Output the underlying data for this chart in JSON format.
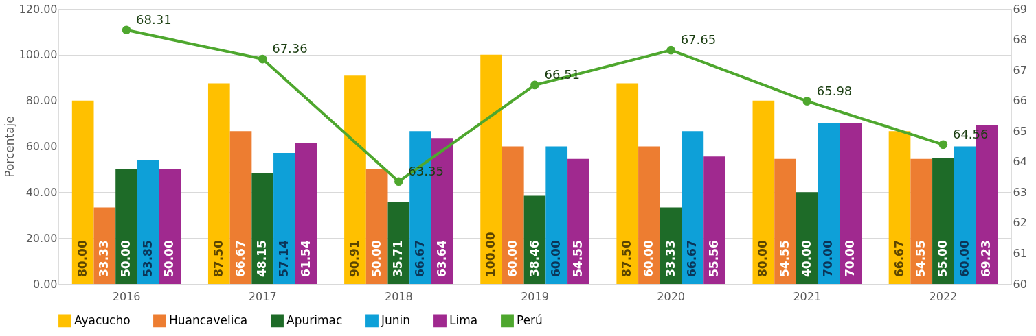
{
  "chart_data": {
    "type": "bar",
    "ylabel": "Porcentaje",
    "categories": [
      "2016",
      "2017",
      "2018",
      "2019",
      "2020",
      "2021",
      "2022"
    ],
    "series": [
      {
        "name": "Ayacucho",
        "color": "#ffc000",
        "values": [
          80.0,
          87.5,
          90.91,
          100.0,
          87.5,
          80.0,
          66.67
        ],
        "value_labels": [
          "80.00",
          "87.50",
          "90.91",
          "100.00",
          "87.50",
          "80.00",
          "66.67"
        ]
      },
      {
        "name": "Huancavelica",
        "color": "#ed7d31",
        "values": [
          33.33,
          66.67,
          50.0,
          60.0,
          60.0,
          54.55,
          54.55
        ],
        "value_labels": [
          "33.33",
          "66.67",
          "50.00",
          "60.00",
          "60.00",
          "54.55",
          "54.55"
        ]
      },
      {
        "name": "Apurimac",
        "color": "#1e6b28",
        "values": [
          50.0,
          48.15,
          35.71,
          38.46,
          33.33,
          40.0,
          55.0
        ],
        "value_labels": [
          "50.00",
          "48.15",
          "35.71",
          "38.46",
          "33.33",
          "40.00",
          "55.00"
        ]
      },
      {
        "name": "Junin",
        "color": "#0ea0d8",
        "values": [
          53.85,
          57.14,
          66.67,
          60.0,
          66.67,
          70.0,
          60.0
        ],
        "value_labels": [
          "53.85",
          "57.14",
          "66.67",
          "60.00",
          "66.67",
          "70.00",
          "60.00"
        ]
      },
      {
        "name": "Lima",
        "color": "#a0298f",
        "values": [
          50.0,
          61.54,
          63.64,
          54.55,
          55.56,
          70.0,
          69.23
        ],
        "value_labels": [
          "50.00",
          "61.54",
          "63.64",
          "54.55",
          "55.56",
          "70.00",
          "69.23"
        ]
      },
      {
        "name": "Perú",
        "type": "line",
        "axis": "y2",
        "color": "#4ea72e",
        "marker": "circle",
        "values": [
          68.31,
          67.36,
          63.35,
          66.51,
          67.65,
          65.98,
          64.56
        ]
      }
    ],
    "ylim": [
      0,
      120
    ],
    "yticks": [
      {
        "value": 0,
        "label": "0.00"
      },
      {
        "value": 20,
        "label": "20.00"
      },
      {
        "value": 40,
        "label": "40.00"
      },
      {
        "value": 60,
        "label": "60.00"
      },
      {
        "value": 80,
        "label": "80.00"
      },
      {
        "value": 100,
        "label": "100.00"
      },
      {
        "value": 120,
        "label": "120.00"
      }
    ],
    "y2lim": [
      60,
      69
    ],
    "y2ticks": [
      60,
      61,
      62,
      63,
      64,
      65,
      66,
      67,
      68,
      69
    ],
    "data_labels": true,
    "grid": "y",
    "legend": "bottom"
  }
}
